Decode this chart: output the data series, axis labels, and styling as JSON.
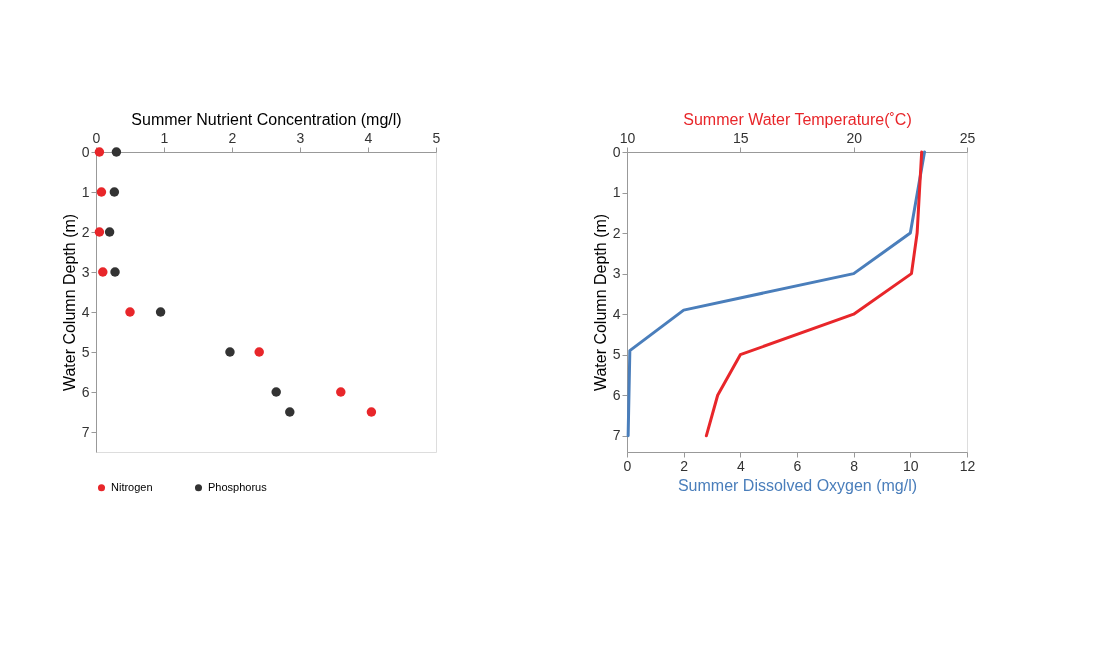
{
  "chart_data": [
    {
      "type": "scatter",
      "xlabel": "Summer Nutrient Concentration (mg/l)",
      "ylabel": "Water Column Depth (m)",
      "xlim": [
        0,
        5
      ],
      "xticks": [
        0,
        1,
        2,
        3,
        4,
        5
      ],
      "ylim": [
        7.5,
        0
      ],
      "yticks": [
        0,
        1,
        2,
        3,
        4,
        5,
        6,
        7
      ],
      "grid": false,
      "legend": "bottom",
      "marker": "circle",
      "series": [
        {
          "name": "Nitrogen",
          "color": "#e8262a",
          "x": [
            0.05,
            0.08,
            0.05,
            0.1,
            0.5,
            2.4,
            3.6,
            4.05
          ],
          "values": [
            0,
            1,
            2,
            3,
            4,
            5,
            6,
            6.5
          ]
        },
        {
          "name": "Phosphorus",
          "color": "#333333",
          "x": [
            0.3,
            0.27,
            0.2,
            0.28,
            0.95,
            1.97,
            2.65,
            2.85
          ],
          "values": [
            0,
            1,
            2,
            3,
            4,
            5,
            6,
            6.5
          ]
        }
      ]
    },
    {
      "type": "line",
      "xlabel": "Summer Dissolved Oxygen (mg/l)",
      "x2label": "Summer Water Temperature(˚C)",
      "ylabel": "Water Column Depth (m)",
      "xlim": [
        0,
        12
      ],
      "xticks": [
        0,
        2,
        4,
        6,
        8,
        10,
        12
      ],
      "x2lim": [
        10,
        25
      ],
      "x2ticks": [
        10,
        15,
        20,
        25
      ],
      "ylim": [
        7.4,
        0
      ],
      "yticks": [
        0,
        1,
        2,
        3,
        4,
        5,
        6,
        7
      ],
      "grid": false,
      "legend": false,
      "line_style": "solid",
      "series": [
        {
          "color": "#4a7ebb",
          "x": [
            10.5,
            10.0,
            8.0,
            2.0,
            0.1,
            0.04
          ],
          "values": [
            0,
            2,
            3,
            3.9,
            4.9,
            7
          ]
        },
        {
          "color": "#e8262a",
          "axis": "x2",
          "x": [
            23.0,
            22.9,
            22.8,
            22.55,
            20.0,
            15.0,
            14.0,
            13.5
          ],
          "values": [
            0,
            1,
            2,
            3,
            4,
            5,
            6,
            7
          ]
        }
      ]
    }
  ]
}
